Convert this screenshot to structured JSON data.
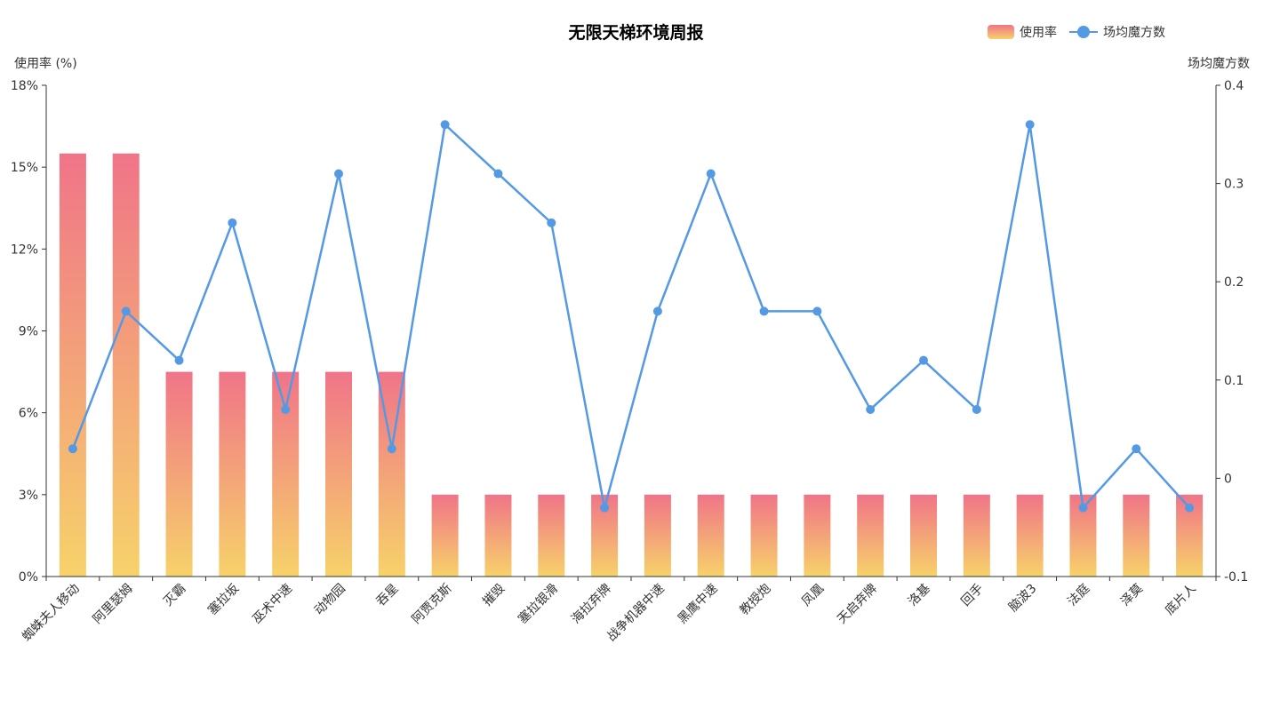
{
  "colors": {
    "bar_gradient_top": "#f07488",
    "bar_gradient_bottom": "#f7d26a",
    "line": "#5499e4",
    "axis": "#333333"
  },
  "chart_data": {
    "type": "bar",
    "title": "无限天梯环境周报",
    "legend_position": "top-right",
    "grid": false,
    "categories": [
      "蜘蛛夫人移动",
      "阿里瑟姆",
      "灭霸",
      "塞拉坂",
      "巫术中速",
      "动物园",
      "吞星",
      "阿贾克斯",
      "摧毁",
      "塞拉银滑",
      "海拉弃牌",
      "战争机器中速",
      "黑鹰中速",
      "教授炮",
      "凤凰",
      "天启弃牌",
      "洛基",
      "回手",
      "脑波3",
      "法庭",
      "泽莫",
      "底片人"
    ],
    "series": [
      {
        "name": "使用率",
        "type": "bar",
        "axis": "left",
        "values": [
          15.5,
          15.5,
          7.5,
          7.5,
          7.5,
          7.5,
          7.5,
          3,
          3,
          3,
          3,
          3,
          3,
          3,
          3,
          3,
          3,
          3,
          3,
          3,
          3,
          3
        ]
      },
      {
        "name": "场均魔方数",
        "type": "line",
        "axis": "right",
        "values": [
          0.03,
          0.17,
          0.12,
          0.26,
          0.07,
          0.31,
          0.03,
          0.36,
          0.31,
          0.26,
          -0.03,
          0.17,
          0.31,
          0.17,
          0.17,
          0.07,
          0.12,
          0.07,
          0.36,
          -0.03,
          0.03,
          -0.03
        ]
      }
    ],
    "y_left": {
      "label": "使用率 (%)",
      "ylim": [
        0,
        18
      ],
      "ticks": [
        0,
        3,
        6,
        9,
        12,
        15,
        18
      ],
      "tick_labels": [
        "0%",
        "3%",
        "6%",
        "9%",
        "12%",
        "15%",
        "18%"
      ]
    },
    "y_right": {
      "label": "场均魔方数",
      "ylim": [
        -0.1,
        0.4
      ],
      "ticks": [
        -0.1,
        0,
        0.1,
        0.2,
        0.3,
        0.4
      ],
      "tick_labels": [
        "-0.1",
        "0",
        "0.1",
        "0.2",
        "0.3",
        "0.4"
      ]
    }
  }
}
